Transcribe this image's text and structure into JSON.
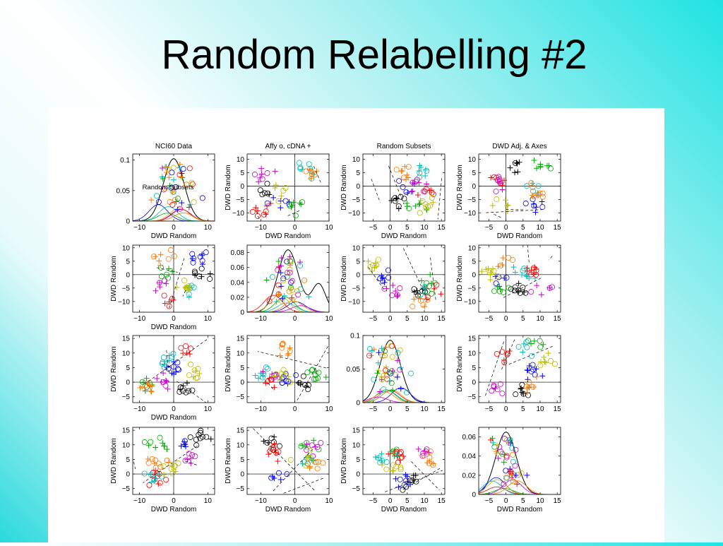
{
  "slide": {
    "title": "Random Relabelling #2"
  },
  "figure": {
    "column_titles": [
      "NCI60 Data",
      "Affy o,   cDNA +",
      "Random Subsets",
      "DWD Adj. & Axes"
    ],
    "in_plot_annotation": "Random Subsets",
    "axis_label": "DWD Random"
  },
  "colors": {
    "series": [
      "#000000",
      "#0000ff",
      "#00aa00",
      "#ff0000",
      "#00bbbb",
      "#cc00cc",
      "#bbbb00",
      "#ff7700"
    ]
  },
  "chart_data": [
    {
      "row": 1,
      "col": 1,
      "type": "area",
      "title": "NCI60 Data",
      "xlabel": "DWD Random",
      "ylabel": "",
      "xlim": [
        -12,
        12
      ],
      "ylim": [
        0,
        0.11
      ],
      "xticks": [
        -10,
        0,
        10
      ],
      "yticks": [
        0,
        0.05,
        0.1
      ],
      "ytick_labels": [
        "0",
        "0.05",
        "0.1"
      ]
    },
    {
      "row": 1,
      "col": 2,
      "type": "scatter",
      "title": "Affy o,   cDNA +",
      "xlabel": "DWD Random",
      "ylabel": "DWD Random",
      "xlim": [
        -14,
        10
      ],
      "ylim": [
        -13,
        12
      ],
      "xticks": [
        -10,
        0,
        10
      ],
      "yticks": [
        -10,
        -5,
        0,
        5,
        10
      ]
    },
    {
      "row": 1,
      "col": 3,
      "type": "scatter",
      "title": "Random Subsets",
      "xlabel": "DWD Random",
      "ylabel": "DWD Random",
      "xlim": [
        -8,
        16
      ],
      "ylim": [
        -13,
        12
      ],
      "xticks": [
        -5,
        0,
        5,
        10,
        15
      ],
      "yticks": [
        -10,
        -5,
        0,
        5,
        10
      ]
    },
    {
      "row": 1,
      "col": 4,
      "type": "scatter",
      "title": "DWD Adj. & Axes",
      "xlabel": "DWD Random",
      "ylabel": "DWD Random",
      "xlim": [
        -8,
        16
      ],
      "ylim": [
        -13,
        12
      ],
      "xticks": [
        -5,
        0,
        5,
        10,
        15
      ],
      "yticks": [
        -10,
        -5,
        0,
        5,
        10
      ]
    },
    {
      "row": 2,
      "col": 1,
      "type": "scatter",
      "title": "",
      "xlabel": "DWD Random",
      "ylabel": "DWD Random",
      "xlim": [
        -12,
        12
      ],
      "ylim": [
        -14,
        11
      ],
      "xticks": [
        -10,
        0,
        10
      ],
      "yticks": [
        -10,
        -5,
        0,
        5,
        10
      ]
    },
    {
      "row": 2,
      "col": 2,
      "type": "area",
      "title": "",
      "xlabel": "",
      "ylabel": "",
      "xlim": [
        -14,
        10
      ],
      "ylim": [
        0,
        0.09
      ],
      "xticks": [
        -10,
        0,
        10
      ],
      "yticks": [
        0,
        0.02,
        0.04,
        0.06,
        0.08
      ],
      "ytick_labels": [
        "0",
        "0.02",
        "0.04",
        "0.06",
        "0.08"
      ]
    },
    {
      "row": 2,
      "col": 3,
      "type": "scatter",
      "title": "",
      "xlabel": "",
      "ylabel": "DWD Random",
      "xlim": [
        -8,
        16
      ],
      "ylim": [
        -14,
        11
      ],
      "xticks": [
        -5,
        0,
        5,
        10,
        15
      ],
      "yticks": [
        -10,
        -5,
        0,
        5,
        10
      ]
    },
    {
      "row": 2,
      "col": 4,
      "type": "scatter",
      "title": "",
      "xlabel": "",
      "ylabel": "DWD Random",
      "xlim": [
        -8,
        16
      ],
      "ylim": [
        -14,
        11
      ],
      "xticks": [
        -5,
        0,
        5,
        10,
        15
      ],
      "yticks": [
        -10,
        -5,
        0,
        5,
        10
      ]
    },
    {
      "row": 3,
      "col": 1,
      "type": "scatter",
      "title": "",
      "xlabel": "DWD Random",
      "ylabel": "DWD Random",
      "xlim": [
        -12,
        12
      ],
      "ylim": [
        -7,
        16
      ],
      "xticks": [
        -10,
        0,
        10
      ],
      "yticks": [
        -5,
        0,
        5,
        10,
        15
      ]
    },
    {
      "row": 3,
      "col": 2,
      "type": "scatter",
      "title": "",
      "xlabel": "",
      "ylabel": "DWD Random",
      "xlim": [
        -14,
        10
      ],
      "ylim": [
        -7,
        16
      ],
      "xticks": [
        -10,
        0,
        10
      ],
      "yticks": [
        -5,
        0,
        5,
        10,
        15
      ]
    },
    {
      "row": 3,
      "col": 3,
      "type": "area",
      "title": "",
      "xlabel": "",
      "ylabel": "",
      "xlim": [
        -8,
        16
      ],
      "ylim": [
        0,
        0.1
      ],
      "xticks": [
        -5,
        0,
        5,
        10,
        15
      ],
      "yticks": [
        0,
        0.05,
        0.1
      ],
      "ytick_labels": [
        "0",
        "0.05",
        "0.1"
      ]
    },
    {
      "row": 3,
      "col": 4,
      "type": "scatter",
      "title": "",
      "xlabel": "",
      "ylabel": "DWD Random",
      "xlim": [
        -8,
        16
      ],
      "ylim": [
        -7,
        16
      ],
      "xticks": [
        -5,
        0,
        5,
        10,
        15
      ],
      "yticks": [
        -5,
        0,
        5,
        10,
        15
      ]
    },
    {
      "row": 4,
      "col": 1,
      "type": "scatter",
      "title": "",
      "xlabel": "DWD Random",
      "ylabel": "DWD Random",
      "xlim": [
        -12,
        12
      ],
      "ylim": [
        -7,
        16
      ],
      "xticks": [
        -10,
        0,
        10
      ],
      "yticks": [
        -5,
        0,
        5,
        10,
        15
      ]
    },
    {
      "row": 4,
      "col": 2,
      "type": "scatter",
      "title": "",
      "xlabel": "DWD Random",
      "ylabel": "DWD Random",
      "xlim": [
        -14,
        10
      ],
      "ylim": [
        -7,
        16
      ],
      "xticks": [
        -10,
        0,
        10
      ],
      "yticks": [
        -5,
        0,
        5,
        10,
        15
      ]
    },
    {
      "row": 4,
      "col": 3,
      "type": "scatter",
      "title": "",
      "xlabel": "DWD Random",
      "ylabel": "DWD Random",
      "xlim": [
        -8,
        16
      ],
      "ylim": [
        -7,
        16
      ],
      "xticks": [
        -5,
        0,
        5,
        10,
        15
      ],
      "yticks": [
        -5,
        0,
        5,
        10,
        15
      ]
    },
    {
      "row": 4,
      "col": 4,
      "type": "area",
      "title": "",
      "xlabel": "DWD Random",
      "ylabel": "",
      "xlim": [
        -8,
        16
      ],
      "ylim": [
        0,
        0.07
      ],
      "xticks": [
        -5,
        0,
        5,
        10,
        15
      ],
      "yticks": [
        0,
        0.02,
        0.04,
        0.06
      ],
      "ytick_labels": [
        "0",
        "0.02",
        "0.04",
        "0.06"
      ]
    }
  ]
}
